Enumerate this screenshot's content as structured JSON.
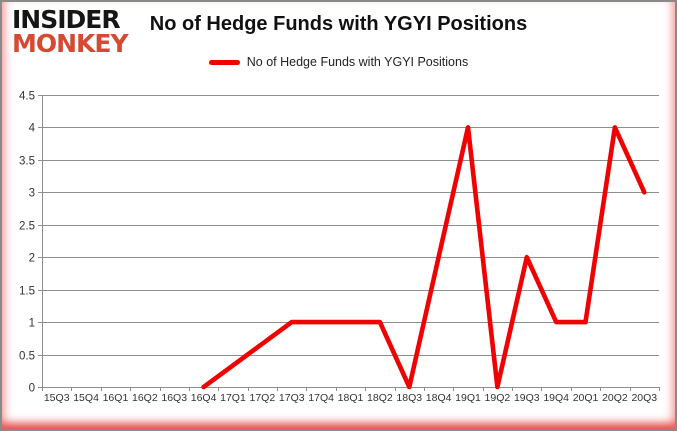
{
  "brand": {
    "name_line1": "INSIDER",
    "name_line2": "MONKEY",
    "line1_color": "#161616",
    "line2_color": "#d64a33"
  },
  "chart_data": {
    "type": "line",
    "title": "No of Hedge Funds with YGYI Positions",
    "xlabel": "",
    "ylabel": "",
    "categories": [
      "15Q3",
      "15Q4",
      "16Q1",
      "16Q2",
      "16Q3",
      "16Q4",
      "17Q1",
      "17Q2",
      "17Q3",
      "17Q4",
      "18Q1",
      "18Q2",
      "18Q3",
      "18Q4",
      "19Q1",
      "19Q2",
      "19Q3",
      "19Q4",
      "20Q1",
      "20Q2",
      "20Q3"
    ],
    "series": [
      {
        "name": "No of Hedge Funds with YGYI Positions",
        "color": "#ee0202",
        "values": [
          null,
          null,
          null,
          null,
          null,
          0,
          0.333,
          0.667,
          1,
          1,
          1,
          1,
          0,
          2,
          4,
          0,
          2,
          1,
          1,
          4,
          3
        ]
      }
    ],
    "ylim": [
      0,
      4.5
    ],
    "ytick_step": 0.5,
    "yticks": [
      "0",
      "0.5",
      "1",
      "1.5",
      "2",
      "2.5",
      "3",
      "3.5",
      "4",
      "4.5"
    ],
    "grid": true,
    "grid_color": "#8e8e8e",
    "axis_label_color": "#333333",
    "legend_position": "top-center",
    "notes": "Line starts at 16Q4; no data plotted before 16Q4. Key points: 16Q4=0, 17Q3-18Q2=1, 18Q3=0, 19Q1=4, 19Q2=0, 19Q3=2, 19Q4-20Q1=1, 20Q2=4, 20Q3=3."
  }
}
